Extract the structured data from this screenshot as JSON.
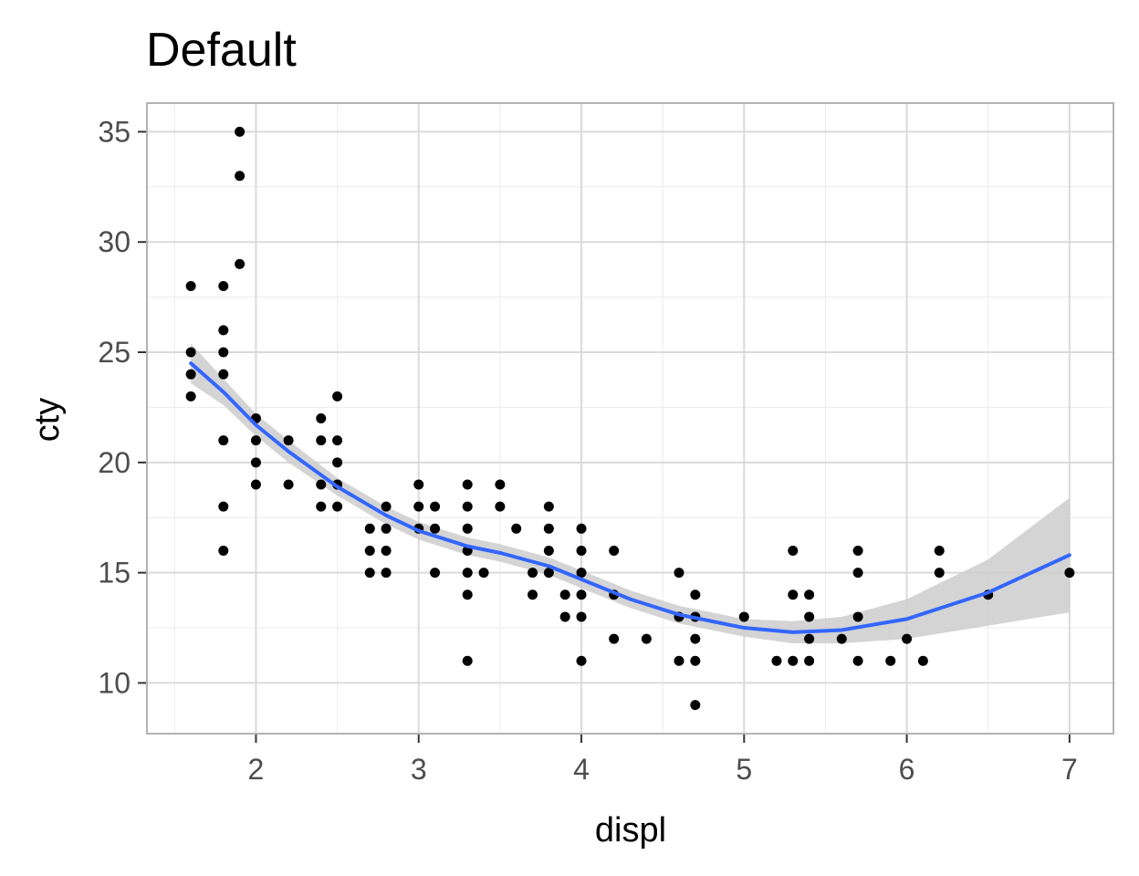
{
  "chart_data": {
    "type": "scatter",
    "title": "Default",
    "xlabel": "displ",
    "ylabel": "cty",
    "xlim": [
      1.33,
      7.27
    ],
    "ylim": [
      7.7,
      36.3
    ],
    "x_ticks": [
      2,
      3,
      4,
      5,
      6,
      7
    ],
    "x_tick_labels": [
      "2",
      "3",
      "4",
      "5",
      "6",
      "7"
    ],
    "y_ticks": [
      10,
      15,
      20,
      25,
      30,
      35
    ],
    "y_tick_labels": [
      "10",
      "15",
      "20",
      "25",
      "30",
      "35"
    ],
    "grid": true,
    "colors": {
      "points": "#000000",
      "smooth_line": "#3366ff",
      "ribbon": "#cccccc",
      "grid_major": "#dadada",
      "grid_minor": "#ececec",
      "panel_border": "#b3b3b3"
    },
    "points": [
      [
        1.6,
        28
      ],
      [
        1.6,
        25
      ],
      [
        1.6,
        24
      ],
      [
        1.6,
        23
      ],
      [
        1.8,
        28
      ],
      [
        1.8,
        26
      ],
      [
        1.8,
        25
      ],
      [
        1.8,
        24
      ],
      [
        1.8,
        21
      ],
      [
        1.8,
        18
      ],
      [
        1.8,
        16
      ],
      [
        1.9,
        35
      ],
      [
        1.9,
        33
      ],
      [
        1.9,
        29
      ],
      [
        2.0,
        22
      ],
      [
        2.0,
        21
      ],
      [
        2.0,
        20
      ],
      [
        2.0,
        19
      ],
      [
        2.2,
        21
      ],
      [
        2.2,
        19
      ],
      [
        2.4,
        22
      ],
      [
        2.4,
        21
      ],
      [
        2.4,
        19
      ],
      [
        2.4,
        18
      ],
      [
        2.5,
        23
      ],
      [
        2.5,
        21
      ],
      [
        2.5,
        20
      ],
      [
        2.5,
        19
      ],
      [
        2.5,
        18
      ],
      [
        2.7,
        17
      ],
      [
        2.7,
        16
      ],
      [
        2.7,
        15
      ],
      [
        2.8,
        18
      ],
      [
        2.8,
        17
      ],
      [
        2.8,
        16
      ],
      [
        2.8,
        15
      ],
      [
        3.0,
        19
      ],
      [
        3.0,
        18
      ],
      [
        3.0,
        17
      ],
      [
        3.1,
        18
      ],
      [
        3.1,
        17
      ],
      [
        3.1,
        15
      ],
      [
        3.3,
        19
      ],
      [
        3.3,
        18
      ],
      [
        3.3,
        17
      ],
      [
        3.3,
        16
      ],
      [
        3.3,
        15
      ],
      [
        3.3,
        14
      ],
      [
        3.3,
        11
      ],
      [
        3.4,
        15
      ],
      [
        3.5,
        19
      ],
      [
        3.5,
        18
      ],
      [
        3.6,
        17
      ],
      [
        3.7,
        15
      ],
      [
        3.7,
        14
      ],
      [
        3.8,
        18
      ],
      [
        3.8,
        17
      ],
      [
        3.8,
        16
      ],
      [
        3.8,
        15
      ],
      [
        3.9,
        14
      ],
      [
        3.9,
        13
      ],
      [
        4.0,
        17
      ],
      [
        4.0,
        16
      ],
      [
        4.0,
        15
      ],
      [
        4.0,
        14
      ],
      [
        4.0,
        13
      ],
      [
        4.0,
        11
      ],
      [
        4.2,
        16
      ],
      [
        4.2,
        14
      ],
      [
        4.2,
        12
      ],
      [
        4.4,
        12
      ],
      [
        4.6,
        15
      ],
      [
        4.6,
        13
      ],
      [
        4.6,
        11
      ],
      [
        4.7,
        14
      ],
      [
        4.7,
        13
      ],
      [
        4.7,
        12
      ],
      [
        4.7,
        11
      ],
      [
        4.7,
        9
      ],
      [
        5.0,
        13
      ],
      [
        5.2,
        11
      ],
      [
        5.3,
        16
      ],
      [
        5.3,
        14
      ],
      [
        5.3,
        11
      ],
      [
        5.4,
        14
      ],
      [
        5.4,
        13
      ],
      [
        5.4,
        12
      ],
      [
        5.4,
        11
      ],
      [
        5.6,
        12
      ],
      [
        5.7,
        16
      ],
      [
        5.7,
        15
      ],
      [
        5.7,
        13
      ],
      [
        5.7,
        11
      ],
      [
        5.9,
        11
      ],
      [
        6.0,
        12
      ],
      [
        6.1,
        11
      ],
      [
        6.2,
        16
      ],
      [
        6.2,
        15
      ],
      [
        6.5,
        14
      ],
      [
        7.0,
        15
      ]
    ],
    "smooth": {
      "x": [
        1.6,
        1.8,
        2.0,
        2.2,
        2.5,
        2.8,
        3.0,
        3.3,
        3.5,
        3.8,
        4.0,
        4.3,
        4.6,
        5.0,
        5.3,
        5.6,
        6.0,
        6.5,
        7.0
      ],
      "y": [
        24.5,
        23.2,
        21.7,
        20.5,
        18.9,
        17.6,
        16.9,
        16.2,
        15.9,
        15.3,
        14.7,
        13.8,
        13.1,
        12.5,
        12.3,
        12.4,
        12.9,
        14.1,
        15.8
      ],
      "lower": [
        23.6,
        22.6,
        21.2,
        20.0,
        18.5,
        17.2,
        16.5,
        15.8,
        15.5,
        14.9,
        14.3,
        13.4,
        12.7,
        12.1,
        11.8,
        11.8,
        12.0,
        12.6,
        13.2
      ],
      "upper": [
        25.4,
        23.8,
        22.2,
        21.0,
        19.3,
        18.0,
        17.3,
        16.6,
        16.3,
        15.7,
        15.1,
        14.2,
        13.5,
        12.9,
        12.8,
        13.0,
        13.8,
        15.6,
        18.4
      ]
    }
  }
}
